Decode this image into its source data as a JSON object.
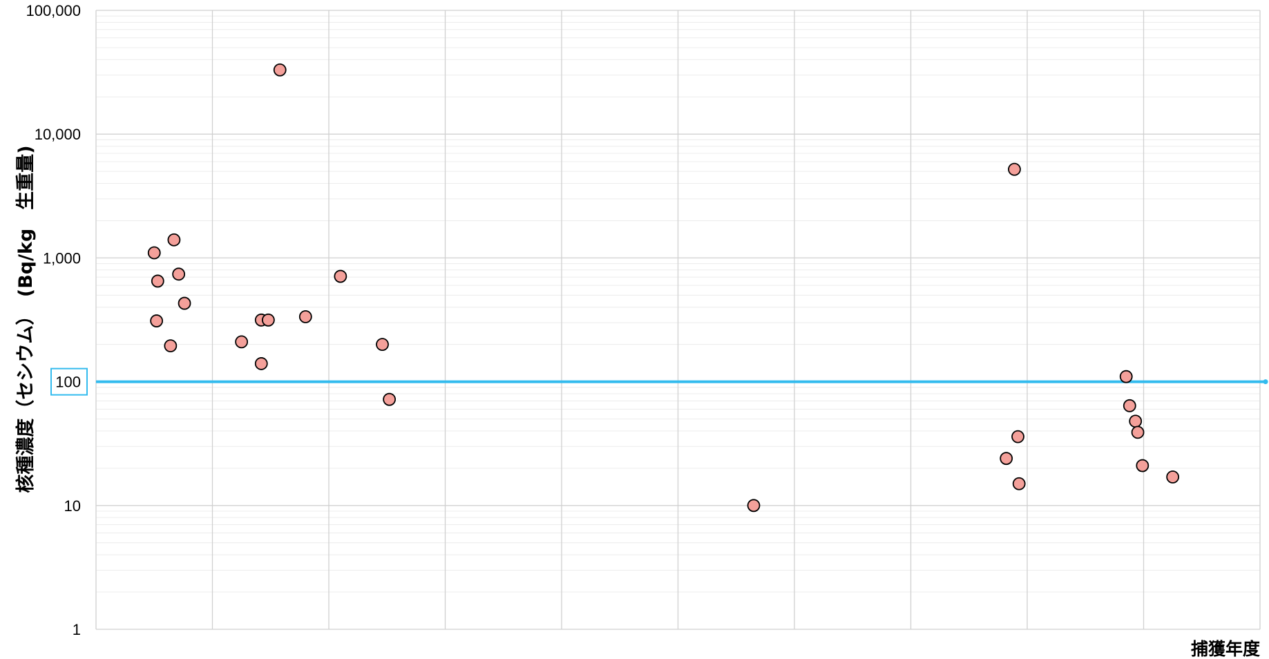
{
  "chart_data": {
    "type": "scatter",
    "title": "",
    "xlabel": "捕獲年度",
    "ylabel": "核種濃度（セシウム）　(Bq/kg　生重量)",
    "y_scale": "log",
    "ylim": [
      1,
      100000
    ],
    "y_ticks": [
      "1",
      "10",
      "100",
      "1,000",
      "10,000",
      "100,000"
    ],
    "x_tick_labels": [],
    "grid": true,
    "reference_line": {
      "value": 100,
      "color": "#33bbee",
      "label": "100"
    },
    "colors": {
      "marker_fill": "#f4a09a",
      "marker_stroke": "#000000",
      "grid": "#d0d0d0",
      "minor_grid": "#ececec"
    },
    "series": [
      {
        "points": [
          {
            "x": 0.5,
            "y": 1100
          },
          {
            "x": 0.53,
            "y": 650
          },
          {
            "x": 0.52,
            "y": 310
          },
          {
            "x": 0.67,
            "y": 1400
          },
          {
            "x": 0.71,
            "y": 740
          },
          {
            "x": 0.76,
            "y": 430
          },
          {
            "x": 0.64,
            "y": 195
          },
          {
            "x": 1.25,
            "y": 210
          },
          {
            "x": 1.42,
            "y": 140
          },
          {
            "x": 1.42,
            "y": 315
          },
          {
            "x": 1.48,
            "y": 315
          },
          {
            "x": 1.58,
            "y": 33000
          },
          {
            "x": 1.8,
            "y": 335
          },
          {
            "x": 2.1,
            "y": 710
          },
          {
            "x": 2.46,
            "y": 200
          },
          {
            "x": 2.52,
            "y": 72
          },
          {
            "x": 5.65,
            "y": 10
          },
          {
            "x": 7.82,
            "y": 24
          },
          {
            "x": 7.89,
            "y": 5200
          },
          {
            "x": 7.92,
            "y": 36
          },
          {
            "x": 7.93,
            "y": 15
          },
          {
            "x": 8.85,
            "y": 110
          },
          {
            "x": 8.88,
            "y": 64
          },
          {
            "x": 8.93,
            "y": 48
          },
          {
            "x": 8.95,
            "y": 39
          },
          {
            "x": 8.99,
            "y": 21
          },
          {
            "x": 9.25,
            "y": 17
          }
        ]
      }
    ]
  }
}
